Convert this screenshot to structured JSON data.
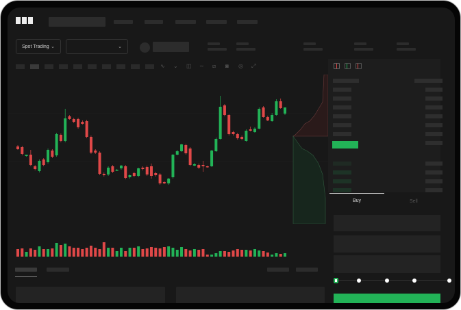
{
  "header": {
    "logo_text": "OKX"
  },
  "toolbar": {
    "market_select": "Spot Trading",
    "pair_select": "",
    "tool_icons": [
      "indicators-icon",
      "chart-type-icon",
      "interval-icon",
      "line-tool-icon",
      "ruler-icon",
      "camera-icon",
      "settings-icon",
      "fullscreen-icon"
    ]
  },
  "order_book": {
    "view_icons": [
      "both-sides-icon",
      "bids-only-icon",
      "asks-only-icon"
    ]
  },
  "trade": {
    "tabs": [
      {
        "label": "Buy",
        "active": true
      },
      {
        "label": "Sell",
        "active": false
      }
    ],
    "slider_steps": [
      "0%",
      "25%",
      "50%",
      "75%",
      "100%"
    ],
    "slider_value": 0
  },
  "colors": {
    "up": "#22b357",
    "down": "#e04848",
    "background": "#181818",
    "panel": "#1d1d1d"
  },
  "chart_data": {
    "type": "candlestick",
    "candles": [
      [
        97,
        99,
        92,
        93
      ],
      [
        96,
        98,
        84,
        86
      ],
      [
        83,
        85,
        82,
        85
      ],
      [
        85,
        92,
        68,
        70
      ],
      [
        68,
        70,
        62,
        64
      ],
      [
        61,
        78,
        59,
        76
      ],
      [
        78,
        80,
        68,
        70
      ],
      [
        74,
        94,
        72,
        92
      ],
      [
        91,
        93,
        80,
        82
      ],
      [
        84,
        117,
        82,
        115
      ],
      [
        114,
        116,
        103,
        105
      ],
      [
        105,
        152,
        103,
        138
      ],
      [
        141,
        143,
        136,
        137
      ],
      [
        137,
        139,
        131,
        133
      ],
      [
        137,
        139,
        123,
        125
      ],
      [
        133,
        135,
        129,
        130
      ],
      [
        134,
        136,
        109,
        111
      ],
      [
        111,
        113,
        86,
        88
      ],
      [
        91,
        93,
        86,
        88
      ],
      [
        88,
        90,
        55,
        57
      ],
      [
        57,
        59,
        53,
        55
      ],
      [
        56,
        68,
        54,
        66
      ],
      [
        68,
        70,
        58,
        60
      ],
      [
        62,
        64,
        61,
        63
      ],
      [
        65,
        70,
        63,
        69
      ],
      [
        68,
        70,
        49,
        51
      ],
      [
        52,
        56,
        50,
        55
      ],
      [
        58,
        60,
        52,
        54
      ],
      [
        54,
        66,
        52,
        65
      ],
      [
        66,
        68,
        62,
        64
      ],
      [
        67,
        69,
        54,
        56
      ],
      [
        68,
        72,
        50,
        54
      ],
      [
        58,
        60,
        53,
        55
      ],
      [
        56,
        58,
        41,
        43
      ],
      [
        45,
        46,
        42,
        43
      ],
      [
        43,
        51,
        41,
        50
      ],
      [
        52,
        86,
        50,
        85
      ],
      [
        85,
        92,
        84,
        90
      ],
      [
        90,
        101,
        89,
        100
      ],
      [
        99,
        101,
        85,
        87
      ],
      [
        94,
        96,
        68,
        70
      ],
      [
        69,
        73,
        68,
        71
      ],
      [
        70,
        72,
        64,
        66
      ],
      [
        70,
        76,
        60,
        68
      ],
      [
        68,
        69,
        66,
        67
      ],
      [
        68,
        92,
        67,
        91
      ],
      [
        90,
        110,
        89,
        108
      ],
      [
        108,
        171,
        107,
        155
      ],
      [
        157,
        159,
        141,
        143
      ],
      [
        143,
        144,
        113,
        115
      ],
      [
        118,
        120,
        113,
        115
      ],
      [
        115,
        117,
        107,
        109
      ],
      [
        111,
        113,
        106,
        108
      ],
      [
        105,
        122,
        104,
        120
      ],
      [
        122,
        126,
        119,
        120
      ],
      [
        118,
        125,
        117,
        123
      ],
      [
        123,
        154,
        122,
        152
      ],
      [
        154,
        156,
        139,
        140
      ],
      [
        140,
        142,
        134,
        135
      ],
      [
        134,
        146,
        133,
        143
      ],
      [
        143,
        166,
        142,
        163
      ],
      [
        163,
        167,
        152,
        153
      ],
      [
        145,
        154,
        143,
        154
      ]
    ],
    "volume": [
      11,
      12,
      7,
      12,
      10,
      15,
      11,
      11,
      12,
      20,
      17,
      19,
      15,
      13,
      13,
      11,
      13,
      16,
      13,
      11,
      21,
      13,
      13,
      8,
      13,
      8,
      13,
      13,
      15,
      11,
      12,
      14,
      13,
      12,
      14,
      15,
      13,
      10,
      14,
      11,
      9,
      11,
      10,
      11,
      3,
      3,
      5,
      8,
      8,
      7,
      9,
      11,
      10,
      10,
      9,
      11,
      9,
      8,
      6,
      3,
      5,
      4,
      5
    ]
  }
}
